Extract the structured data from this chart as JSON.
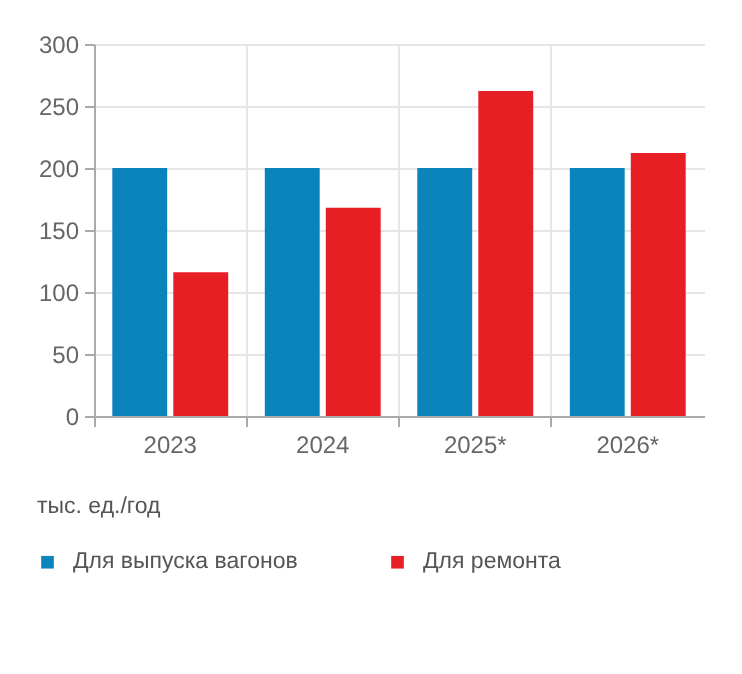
{
  "chart_data": {
    "type": "bar",
    "categories": [
      "2023",
      "2024",
      "2025*",
      "2026*"
    ],
    "series": [
      {
        "name": "Для выпуска вагонов",
        "color": "#0b84bb",
        "values": [
          200,
          200,
          200,
          200
        ]
      },
      {
        "name": "Для ремонта",
        "color": "#e81e25",
        "values": [
          116,
          168,
          262,
          212
        ]
      }
    ],
    "ylabel": "тыс. ед./год",
    "ylim": [
      0,
      300
    ],
    "yticks": [
      0,
      50,
      100,
      150,
      200,
      250,
      300
    ],
    "grid": true,
    "legend": "bottom"
  }
}
